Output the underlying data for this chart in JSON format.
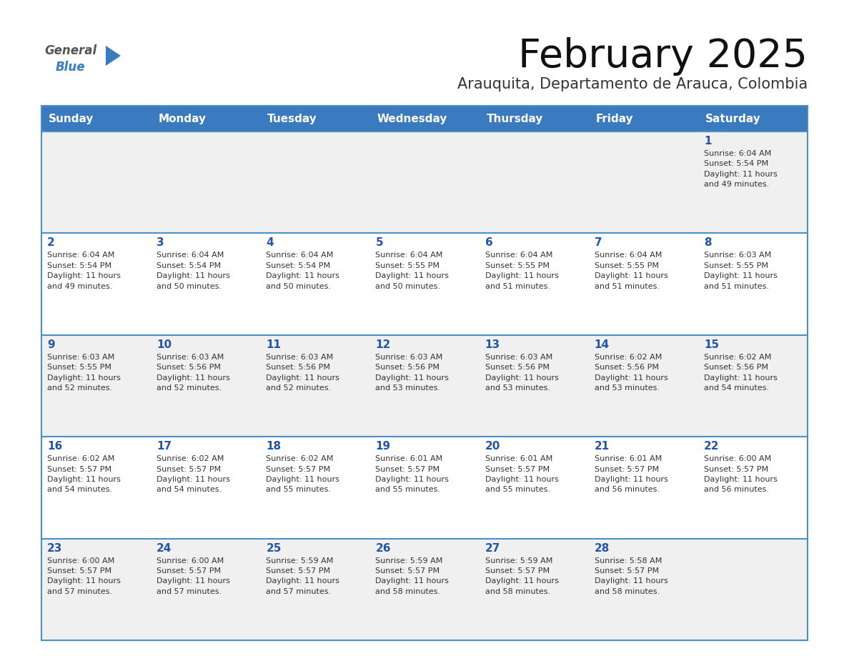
{
  "title": "February 2025",
  "subtitle": "Arauquita, Departamento de Arauca, Colombia",
  "days_of_week": [
    "Sunday",
    "Monday",
    "Tuesday",
    "Wednesday",
    "Thursday",
    "Friday",
    "Saturday"
  ],
  "header_bg": "#3a7abf",
  "header_text": "#ffffff",
  "row_bg_light": "#f0f0f0",
  "row_bg_white": "#ffffff",
  "cell_border_color": "#4a90c4",
  "day_number_color": "#2255aa",
  "text_color": "#333333",
  "title_color": "#111111",
  "subtitle_color": "#333333",
  "logo_general_color": "#555555",
  "logo_blue_color": "#3a7abf",
  "logo_triangle_color": "#3a7abf",
  "calendar_data": [
    [
      {
        "day": null,
        "info": null
      },
      {
        "day": null,
        "info": null
      },
      {
        "day": null,
        "info": null
      },
      {
        "day": null,
        "info": null
      },
      {
        "day": null,
        "info": null
      },
      {
        "day": null,
        "info": null
      },
      {
        "day": 1,
        "info": "Sunrise: 6:04 AM\nSunset: 5:54 PM\nDaylight: 11 hours\nand 49 minutes."
      }
    ],
    [
      {
        "day": 2,
        "info": "Sunrise: 6:04 AM\nSunset: 5:54 PM\nDaylight: 11 hours\nand 49 minutes."
      },
      {
        "day": 3,
        "info": "Sunrise: 6:04 AM\nSunset: 5:54 PM\nDaylight: 11 hours\nand 50 minutes."
      },
      {
        "day": 4,
        "info": "Sunrise: 6:04 AM\nSunset: 5:54 PM\nDaylight: 11 hours\nand 50 minutes."
      },
      {
        "day": 5,
        "info": "Sunrise: 6:04 AM\nSunset: 5:55 PM\nDaylight: 11 hours\nand 50 minutes."
      },
      {
        "day": 6,
        "info": "Sunrise: 6:04 AM\nSunset: 5:55 PM\nDaylight: 11 hours\nand 51 minutes."
      },
      {
        "day": 7,
        "info": "Sunrise: 6:04 AM\nSunset: 5:55 PM\nDaylight: 11 hours\nand 51 minutes."
      },
      {
        "day": 8,
        "info": "Sunrise: 6:03 AM\nSunset: 5:55 PM\nDaylight: 11 hours\nand 51 minutes."
      }
    ],
    [
      {
        "day": 9,
        "info": "Sunrise: 6:03 AM\nSunset: 5:55 PM\nDaylight: 11 hours\nand 52 minutes."
      },
      {
        "day": 10,
        "info": "Sunrise: 6:03 AM\nSunset: 5:56 PM\nDaylight: 11 hours\nand 52 minutes."
      },
      {
        "day": 11,
        "info": "Sunrise: 6:03 AM\nSunset: 5:56 PM\nDaylight: 11 hours\nand 52 minutes."
      },
      {
        "day": 12,
        "info": "Sunrise: 6:03 AM\nSunset: 5:56 PM\nDaylight: 11 hours\nand 53 minutes."
      },
      {
        "day": 13,
        "info": "Sunrise: 6:03 AM\nSunset: 5:56 PM\nDaylight: 11 hours\nand 53 minutes."
      },
      {
        "day": 14,
        "info": "Sunrise: 6:02 AM\nSunset: 5:56 PM\nDaylight: 11 hours\nand 53 minutes."
      },
      {
        "day": 15,
        "info": "Sunrise: 6:02 AM\nSunset: 5:56 PM\nDaylight: 11 hours\nand 54 minutes."
      }
    ],
    [
      {
        "day": 16,
        "info": "Sunrise: 6:02 AM\nSunset: 5:57 PM\nDaylight: 11 hours\nand 54 minutes."
      },
      {
        "day": 17,
        "info": "Sunrise: 6:02 AM\nSunset: 5:57 PM\nDaylight: 11 hours\nand 54 minutes."
      },
      {
        "day": 18,
        "info": "Sunrise: 6:02 AM\nSunset: 5:57 PM\nDaylight: 11 hours\nand 55 minutes."
      },
      {
        "day": 19,
        "info": "Sunrise: 6:01 AM\nSunset: 5:57 PM\nDaylight: 11 hours\nand 55 minutes."
      },
      {
        "day": 20,
        "info": "Sunrise: 6:01 AM\nSunset: 5:57 PM\nDaylight: 11 hours\nand 55 minutes."
      },
      {
        "day": 21,
        "info": "Sunrise: 6:01 AM\nSunset: 5:57 PM\nDaylight: 11 hours\nand 56 minutes."
      },
      {
        "day": 22,
        "info": "Sunrise: 6:00 AM\nSunset: 5:57 PM\nDaylight: 11 hours\nand 56 minutes."
      }
    ],
    [
      {
        "day": 23,
        "info": "Sunrise: 6:00 AM\nSunset: 5:57 PM\nDaylight: 11 hours\nand 57 minutes."
      },
      {
        "day": 24,
        "info": "Sunrise: 6:00 AM\nSunset: 5:57 PM\nDaylight: 11 hours\nand 57 minutes."
      },
      {
        "day": 25,
        "info": "Sunrise: 5:59 AM\nSunset: 5:57 PM\nDaylight: 11 hours\nand 57 minutes."
      },
      {
        "day": 26,
        "info": "Sunrise: 5:59 AM\nSunset: 5:57 PM\nDaylight: 11 hours\nand 58 minutes."
      },
      {
        "day": 27,
        "info": "Sunrise: 5:59 AM\nSunset: 5:57 PM\nDaylight: 11 hours\nand 58 minutes."
      },
      {
        "day": 28,
        "info": "Sunrise: 5:58 AM\nSunset: 5:57 PM\nDaylight: 11 hours\nand 58 minutes."
      },
      {
        "day": null,
        "info": null
      }
    ]
  ],
  "fig_width": 11.88,
  "fig_height": 9.18,
  "dpi": 100
}
